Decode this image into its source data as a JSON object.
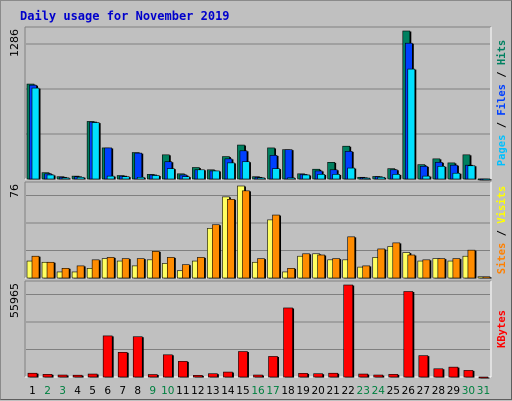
{
  "chart_data": {
    "type": "bar",
    "title": "Daily usage for November 2019",
    "categories": [
      "1",
      "2",
      "3",
      "4",
      "5",
      "6",
      "7",
      "8",
      "9",
      "10",
      "11",
      "12",
      "13",
      "14",
      "15",
      "16",
      "17",
      "18",
      "19",
      "20",
      "21",
      "22",
      "23",
      "24",
      "25",
      "26",
      "27",
      "28",
      "29",
      "30",
      "31"
    ],
    "weekend_days": [
      "2",
      "3",
      "9",
      "10",
      "16",
      "17",
      "23",
      "24",
      "30",
      "31"
    ],
    "panels": [
      {
        "name": "hits-files-pages",
        "y_max_label": "1286",
        "ylim": [
          0,
          1286
        ],
        "right_label": [
          {
            "text": "Pages",
            "color": "#00c0ff"
          },
          {
            "text": " / ",
            "color": "#000000"
          },
          {
            "text": "Files",
            "color": "#0040ff"
          },
          {
            "text": " / ",
            "color": "#000000"
          },
          {
            "text": "Hits",
            "color": "#008060"
          }
        ],
        "series": [
          {
            "name": "Hits",
            "color": "#008060",
            "values": [
              825,
              55,
              20,
              25,
              500,
              270,
              30,
              230,
              40,
              210,
              45,
              100,
              80,
              195,
              295,
              20,
              270,
              255,
              45,
              85,
              145,
              285,
              15,
              22,
              90,
              1286,
              125,
              175,
              140,
              210,
              1
            ]
          },
          {
            "name": "Files",
            "color": "#0040ff",
            "values": [
              815,
              45,
              15,
              20,
              495,
              270,
              25,
              225,
              35,
              150,
              35,
              80,
              70,
              175,
              245,
              15,
              205,
              255,
              40,
              70,
              80,
              240,
              12,
              20,
              80,
              1180,
              110,
              145,
              120,
              120,
              1
            ]
          },
          {
            "name": "Pages",
            "color": "#00e0ff",
            "values": [
              790,
              35,
              10,
              15,
              490,
              25,
              20,
              15,
              30,
              90,
              20,
              80,
              70,
              140,
              150,
              10,
              90,
              10,
              35,
              40,
              40,
              95,
              8,
              15,
              40,
              955,
              25,
              110,
              50,
              115,
              1
            ]
          }
        ]
      },
      {
        "name": "visits-sites",
        "y_max_label": "76",
        "ylim": [
          0,
          76
        ],
        "right_label": [
          {
            "text": "Sites",
            "color": "#ff8000"
          },
          {
            "text": " / ",
            "color": "#000000"
          },
          {
            "text": "Visits",
            "color": "#ffff00"
          }
        ],
        "series": [
          {
            "name": "Visits",
            "color": "#ffff60",
            "values": [
              14,
              13,
              5,
              5,
              8,
              16,
              14,
              10,
              15,
              12,
              6,
              14,
              41,
              67,
              76,
              13,
              48,
              5,
              18,
              20,
              15,
              15,
              9,
              17,
              26,
              21,
              14,
              16,
              14,
              18,
              1
            ]
          },
          {
            "name": "Sites",
            "color": "#ff8c00",
            "values": [
              18,
              13,
              8,
              10,
              15,
              17,
              16,
              16,
              22,
              17,
              11,
              17,
              44,
              65,
              72,
              16,
              52,
              8,
              20,
              19,
              16,
              34,
              10,
              24,
              29,
              19,
              15,
              16,
              16,
              23,
              1
            ]
          }
        ]
      },
      {
        "name": "kbytes",
        "y_max_label": "55965",
        "ylim": [
          0,
          55965
        ],
        "right_label": [
          {
            "text": "KBytes",
            "color": "#ff0000"
          }
        ],
        "series": [
          {
            "name": "KBytes",
            "color": "#ff0000",
            "values": [
              2300,
              1600,
              1200,
              1100,
              1800,
              25000,
              15000,
              24500,
              1500,
              13500,
              9500,
              1000,
              2000,
              3000,
              15500,
              1200,
              12500,
              42000,
              2200,
              2000,
              2300,
              55965,
              1800,
              1200,
              1600,
              52000,
              13000,
              5000,
              6000,
              4000,
              1
            ]
          }
        ]
      }
    ]
  }
}
